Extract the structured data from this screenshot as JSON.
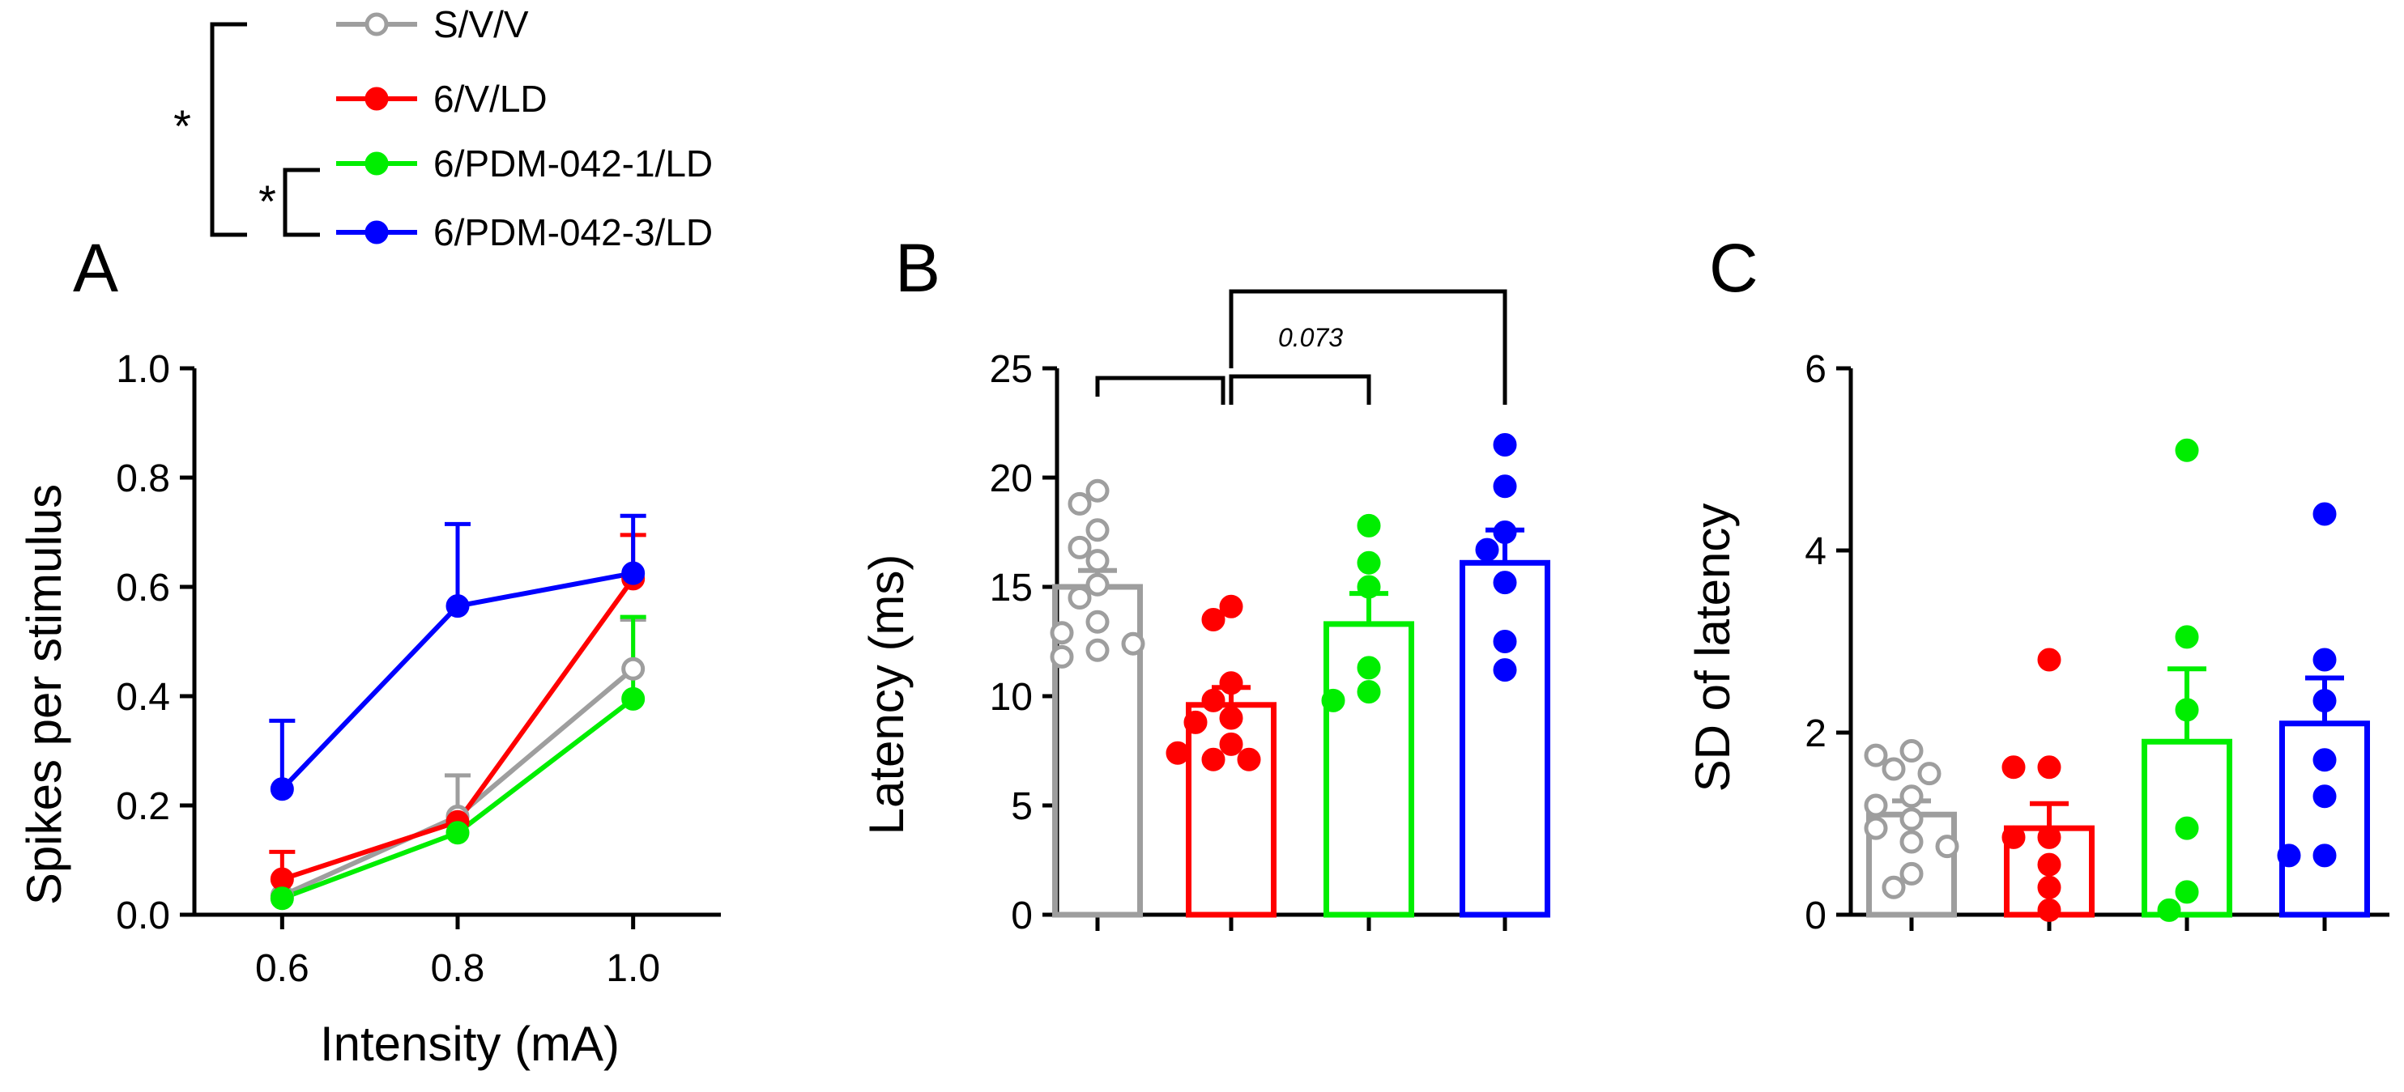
{
  "legend": {
    "entries": [
      {
        "label": "S/V/V",
        "color": "#9e9e9e",
        "filled": false
      },
      {
        "label": "6/V/LD",
        "color": "#ff0000",
        "filled": true
      },
      {
        "label": "6/PDM-042-1/LD",
        "color": "#00ee00",
        "filled": true
      },
      {
        "label": "6/PDM-042-3/LD",
        "color": "#0000ff",
        "filled": true
      }
    ],
    "sig_outer": "*",
    "sig_inner": "*"
  },
  "chart_data": [
    {
      "panel": "A",
      "type": "line",
      "xlabel": "Intensity (mA)",
      "ylabel": "Spikes per stimulus",
      "x": [
        0.6,
        0.8,
        1.0
      ],
      "x_ticks": [
        "0.6",
        "0.8",
        "1.0"
      ],
      "ylim": [
        0,
        1.0
      ],
      "y_ticks": [
        "0.0",
        "0.2",
        "0.4",
        "0.6",
        "0.8",
        "1.0"
      ],
      "series": [
        {
          "name": "S/V/V",
          "color": "#9e9e9e",
          "filled": false,
          "values": [
            0.035,
            0.18,
            0.45
          ],
          "err": [
            0.0,
            0.075,
            0.09
          ]
        },
        {
          "name": "6/V/LD",
          "color": "#ff0000",
          "filled": true,
          "values": [
            0.065,
            0.17,
            0.615
          ],
          "err": [
            0.05,
            0.0,
            0.08
          ]
        },
        {
          "name": "6/PDM-042-1/LD",
          "color": "#00ee00",
          "filled": true,
          "values": [
            0.03,
            0.15,
            0.395
          ],
          "err": [
            0.0,
            0.0,
            0.15
          ]
        },
        {
          "name": "6/PDM-042-3/LD",
          "color": "#0000ff",
          "filled": true,
          "values": [
            0.23,
            0.565,
            0.625
          ],
          "err": [
            0.125,
            0.15,
            0.105
          ]
        }
      ]
    },
    {
      "panel": "B",
      "type": "bar",
      "ylabel": "Latency (ms)",
      "ylim": [
        0,
        25
      ],
      "y_ticks": [
        "0",
        "5",
        "10",
        "15",
        "20",
        "25"
      ],
      "annotation": "0.073",
      "series": [
        {
          "name": "S/V/V",
          "color": "#9e9e9e",
          "filled": false,
          "mean": 15.0,
          "sem": 0.75,
          "points": [
            19.4,
            18.8,
            17.6,
            16.8,
            16.2,
            15.1,
            14.5,
            13.4,
            12.9,
            12.1,
            11.8,
            12.4
          ]
        },
        {
          "name": "6/V/LD",
          "color": "#ff0000",
          "filled": true,
          "mean": 9.6,
          "sem": 0.8,
          "points": [
            14.1,
            13.5,
            10.6,
            9.8,
            9.0,
            8.8,
            7.8,
            7.1,
            7.1,
            7.4
          ]
        },
        {
          "name": "6/PDM-042-1/LD",
          "color": "#00ee00",
          "filled": true,
          "mean": 13.3,
          "sem": 1.4,
          "points": [
            17.8,
            16.1,
            15.0,
            11.3,
            10.2,
            9.8
          ]
        },
        {
          "name": "6/PDM-042-3/LD",
          "color": "#0000ff",
          "filled": true,
          "mean": 16.1,
          "sem": 1.5,
          "points": [
            21.5,
            19.6,
            17.5,
            16.7,
            15.2,
            12.5,
            11.2
          ]
        }
      ]
    },
    {
      "panel": "C",
      "type": "bar",
      "ylabel": "SD of latency",
      "ylim": [
        0,
        6
      ],
      "y_ticks": [
        "0",
        "2",
        "4",
        "6"
      ],
      "series": [
        {
          "name": "S/V/V",
          "color": "#9e9e9e",
          "filled": false,
          "mean": 1.1,
          "sem": 0.15,
          "points": [
            1.8,
            1.75,
            1.6,
            1.55,
            1.3,
            1.2,
            1.05,
            0.95,
            0.8,
            0.75,
            0.45,
            0.3
          ]
        },
        {
          "name": "6/V/LD",
          "color": "#ff0000",
          "filled": true,
          "mean": 0.95,
          "sem": 0.27,
          "points": [
            2.8,
            1.62,
            1.62,
            0.85,
            0.85,
            0.55,
            0.3,
            0.05
          ]
        },
        {
          "name": "6/PDM-042-1/LD",
          "color": "#00ee00",
          "filled": true,
          "mean": 1.9,
          "sem": 0.8,
          "points": [
            5.1,
            3.05,
            2.25,
            0.95,
            0.25,
            0.05
          ]
        },
        {
          "name": "6/PDM-042-3/LD",
          "color": "#0000ff",
          "filled": true,
          "mean": 2.1,
          "sem": 0.5,
          "points": [
            4.4,
            2.8,
            2.35,
            1.7,
            1.3,
            0.65,
            0.65
          ]
        }
      ]
    }
  ]
}
